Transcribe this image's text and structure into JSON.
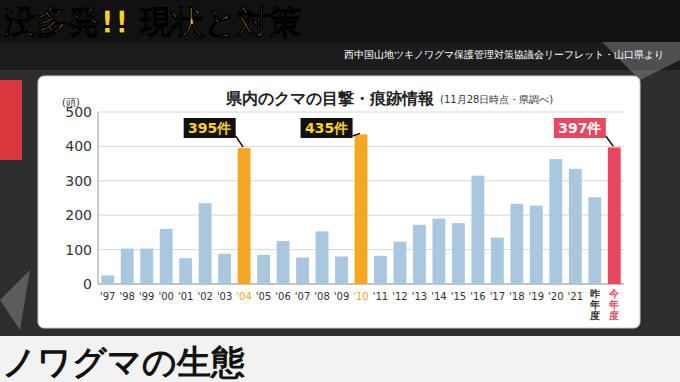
{
  "header": {
    "title": "没多発!! 現状と対策",
    "source": "西中国山地ツキノワグマ保護管理対策協議会リーフレット・山口県より",
    "section": "ノワグマの生態"
  },
  "chart_data": {
    "type": "bar",
    "title": "県内のクマの目撃・痕跡情報",
    "subtitle": "(11月28日時点・県調べ)",
    "y_label": "(頭)",
    "categories": [
      "'97",
      "'98",
      "'99",
      "'00",
      "'01",
      "'02",
      "'03",
      "'04",
      "'05",
      "'06",
      "'07",
      "'08",
      "'09",
      "'10",
      "'11",
      "'12",
      "'13",
      "'14",
      "'15",
      "'16",
      "'17",
      "'18",
      "'19",
      "'20",
      "'21",
      "昨年度",
      "今年度"
    ],
    "values": [
      25,
      103,
      103,
      160,
      75,
      235,
      88,
      395,
      85,
      125,
      77,
      153,
      80,
      435,
      82,
      123,
      172,
      190,
      177,
      315,
      135,
      233,
      228,
      363,
      335,
      252,
      397
    ],
    "value_labels": [
      null,
      null,
      null,
      null,
      null,
      null,
      null,
      "395件",
      null,
      null,
      null,
      null,
      null,
      "435件",
      null,
      null,
      null,
      null,
      null,
      null,
      null,
      null,
      null,
      null,
      null,
      null,
      "397件"
    ],
    "colors": [
      "#a9c8e0",
      "#a9c8e0",
      "#a9c8e0",
      "#a9c8e0",
      "#a9c8e0",
      "#a9c8e0",
      "#a9c8e0",
      "#f5a623",
      "#a9c8e0",
      "#a9c8e0",
      "#a9c8e0",
      "#a9c8e0",
      "#a9c8e0",
      "#f5a623",
      "#a9c8e0",
      "#a9c8e0",
      "#a9c8e0",
      "#a9c8e0",
      "#a9c8e0",
      "#a9c8e0",
      "#a9c8e0",
      "#a9c8e0",
      "#a9c8e0",
      "#a9c8e0",
      "#a9c8e0",
      "#a9c8e0",
      "#e8475f"
    ],
    "ylim": [
      0,
      500
    ],
    "yticks": [
      0,
      100,
      200,
      300,
      400,
      500
    ],
    "grid": true
  }
}
